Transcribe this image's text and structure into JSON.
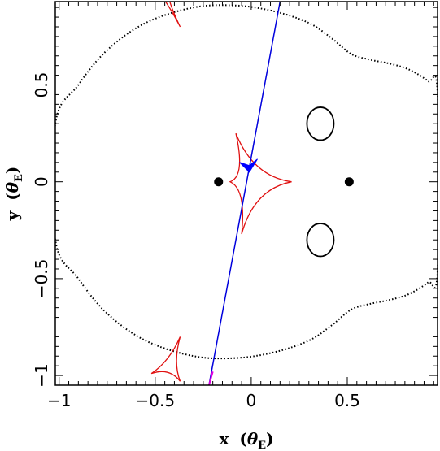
{
  "chart_data": {
    "type": "scatter",
    "title": "",
    "xlabel": {
      "main": "x",
      "greek": "θ",
      "sub": "E"
    },
    "ylabel": {
      "main": "y",
      "greek": "θ",
      "sub": "E"
    },
    "xlim": [
      -1.02,
      0.97
    ],
    "ylim": [
      -1.05,
      0.93
    ],
    "xticks": [
      {
        "v": -1,
        "label": "−1"
      },
      {
        "v": -0.5,
        "label": "−0.5"
      },
      {
        "v": 0,
        "label": "0"
      },
      {
        "v": 0.5,
        "label": "0.5"
      }
    ],
    "yticks": [
      {
        "v": -1,
        "label": "−1"
      },
      {
        "v": -0.5,
        "label": "−0.5"
      },
      {
        "v": 0,
        "label": "0"
      },
      {
        "v": 0.5,
        "label": "0.5"
      }
    ],
    "lenses": [
      {
        "name": "lens-1",
        "x": -0.17,
        "y": 0.0
      },
      {
        "name": "lens-2",
        "x": 0.51,
        "y": 0.0
      }
    ],
    "critical_curve_outer": [
      [
        -1.02,
        0.3
      ],
      [
        -0.9,
        0.5
      ],
      [
        -0.75,
        0.68
      ],
      [
        -0.55,
        0.82
      ],
      [
        -0.3,
        0.9
      ],
      [
        -0.08,
        0.91
      ],
      [
        0.12,
        0.88
      ],
      [
        0.3,
        0.82
      ],
      [
        0.42,
        0.74
      ],
      [
        0.52,
        0.66
      ],
      [
        0.62,
        0.63
      ],
      [
        0.72,
        0.61
      ],
      [
        0.82,
        0.58
      ],
      [
        0.92,
        0.52
      ],
      [
        0.97,
        0.46
      ],
      [
        0.97,
        -0.46
      ],
      [
        0.92,
        -0.52
      ],
      [
        0.82,
        -0.58
      ],
      [
        0.72,
        -0.61
      ],
      [
        0.62,
        -0.63
      ],
      [
        0.52,
        -0.66
      ],
      [
        0.42,
        -0.74
      ],
      [
        0.3,
        -0.82
      ],
      [
        0.12,
        -0.88
      ],
      [
        -0.08,
        -0.91
      ],
      [
        -0.3,
        -0.9
      ],
      [
        -0.55,
        -0.82
      ],
      [
        -0.75,
        -0.68
      ],
      [
        -0.9,
        -0.5
      ],
      [
        -1.02,
        -0.3
      ]
    ],
    "critical_ovals": [
      {
        "cx": 0.36,
        "cy": 0.3,
        "rx": 0.07,
        "ry": 0.085
      },
      {
        "cx": 0.36,
        "cy": -0.3,
        "rx": 0.07,
        "ry": 0.085
      }
    ],
    "caustics": [
      {
        "name": "central-caustic",
        "cusps": [
          [
            -0.08,
            0.25
          ],
          [
            0.21,
            0.0
          ],
          [
            -0.05,
            -0.27
          ],
          [
            -0.11,
            0.0
          ]
        ]
      },
      {
        "name": "top-caustic",
        "cusps": [
          [
            -0.43,
            0.95
          ],
          [
            -0.37,
            0.8
          ],
          [
            -0.46,
            0.95
          ]
        ]
      },
      {
        "name": "bottom-caustic",
        "cusps": [
          [
            -0.37,
            -0.8
          ],
          [
            -0.52,
            -0.99
          ],
          [
            -0.37,
            -1.03
          ]
        ]
      }
    ],
    "source_trajectory": {
      "from": [
        -0.22,
        -1.05
      ],
      "to": [
        0.15,
        0.93
      ],
      "magenta_end": [
        -0.2,
        -0.98
      ]
    },
    "source_marker": {
      "x": -0.01,
      "y": 0.05
    },
    "colors": {
      "caustic": "#e01010",
      "trajectory": "#0000dd",
      "trajectory_start": "#e000e0",
      "critical": "#000000",
      "lens": "#000000",
      "source": "#0000ff"
    }
  }
}
